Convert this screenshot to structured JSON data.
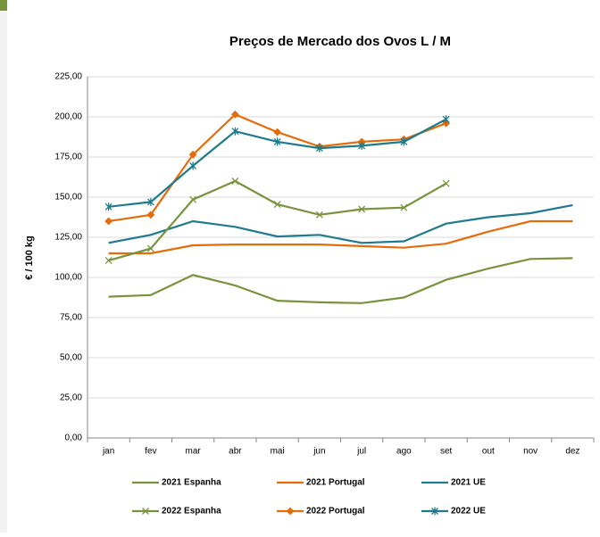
{
  "chart_data": {
    "type": "line",
    "title": "Preços de Mercado dos Ovos L / M",
    "ylabel": "€ / 100 kg",
    "categories": [
      "jan",
      "fev",
      "mar",
      "abr",
      "mai",
      "jun",
      "jul",
      "ago",
      "set",
      "out",
      "nov",
      "dez"
    ],
    "ylim": [
      0,
      225
    ],
    "yticks": [
      {
        "value": 0,
        "label": "0,00"
      },
      {
        "value": 25,
        "label": "25,00"
      },
      {
        "value": 50,
        "label": "50,00"
      },
      {
        "value": 75,
        "label": "75,00"
      },
      {
        "value": 100,
        "label": "100,00"
      },
      {
        "value": 125,
        "label": "125,00"
      },
      {
        "value": 150,
        "label": "150,00"
      },
      {
        "value": 175,
        "label": "175,00"
      },
      {
        "value": 200,
        "label": "200,00"
      },
      {
        "value": 225,
        "label": "225,00"
      }
    ],
    "grid": true,
    "legend": "bottom",
    "series": [
      {
        "name": "2021 Espanha",
        "color": "#77933c",
        "marker": "none",
        "values": [
          88,
          89,
          101.5,
          95,
          85.5,
          84.5,
          84,
          87.5,
          98.5,
          105.5,
          111.5,
          112
        ]
      },
      {
        "name": "2021 Portugal",
        "color": "#e46c0a",
        "marker": "none",
        "values": [
          115,
          115,
          120,
          120.5,
          120.5,
          120.5,
          119.5,
          118.5,
          121,
          128.5,
          135,
          135
        ]
      },
      {
        "name": "2021 UE",
        "color": "#1f7a8c",
        "marker": "none",
        "values": [
          121.5,
          126.5,
          135,
          131.5,
          125.5,
          126.5,
          121.5,
          122.5,
          133.5,
          137.5,
          140,
          145
        ]
      },
      {
        "name": "2022 Espanha",
        "color": "#77933c",
        "marker": "x",
        "values": [
          110.5,
          118,
          148.5,
          160,
          145.5,
          139,
          142.5,
          143.5,
          158.5,
          null,
          null,
          null
        ]
      },
      {
        "name": "2022 Portugal",
        "color": "#e46c0a",
        "marker": "diamond",
        "values": [
          135,
          139,
          176.5,
          201.5,
          190.5,
          181.5,
          184.5,
          186,
          196,
          null,
          null,
          null
        ]
      },
      {
        "name": "2022 UE",
        "color": "#1f7a8c",
        "marker": "asterisk",
        "values": [
          144,
          147,
          169.5,
          191,
          184.5,
          180.5,
          182,
          184.5,
          198.5,
          null,
          null,
          null
        ]
      }
    ]
  }
}
